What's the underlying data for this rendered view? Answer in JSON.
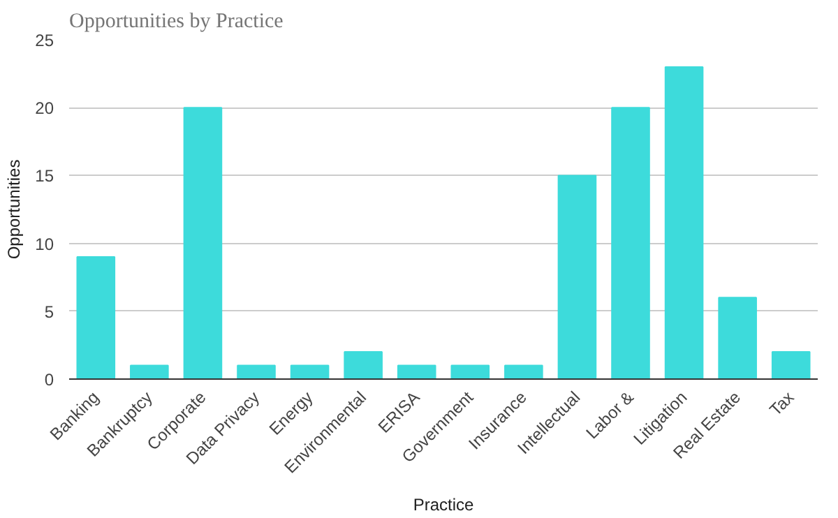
{
  "chart_data": {
    "type": "bar",
    "title": "Opportunities by Practice",
    "xlabel": "Practice",
    "ylabel": "Opportunities",
    "categories": [
      "Banking",
      "Bankruptcy",
      "Corporate",
      "Data Privacy",
      "Energy",
      "Environmental",
      "ERISA",
      "Government",
      "Insurance",
      "Intellectual",
      "Labor &",
      "Litigation",
      "Real Estate",
      "Tax"
    ],
    "values": [
      9,
      1,
      20,
      1,
      1,
      2,
      1,
      1,
      1,
      15,
      20,
      23,
      6,
      2
    ],
    "color": "#3ddbdb",
    "ylim": [
      0,
      25
    ],
    "yticks": [
      0,
      5,
      10,
      15,
      20,
      25
    ],
    "grid": "y"
  }
}
